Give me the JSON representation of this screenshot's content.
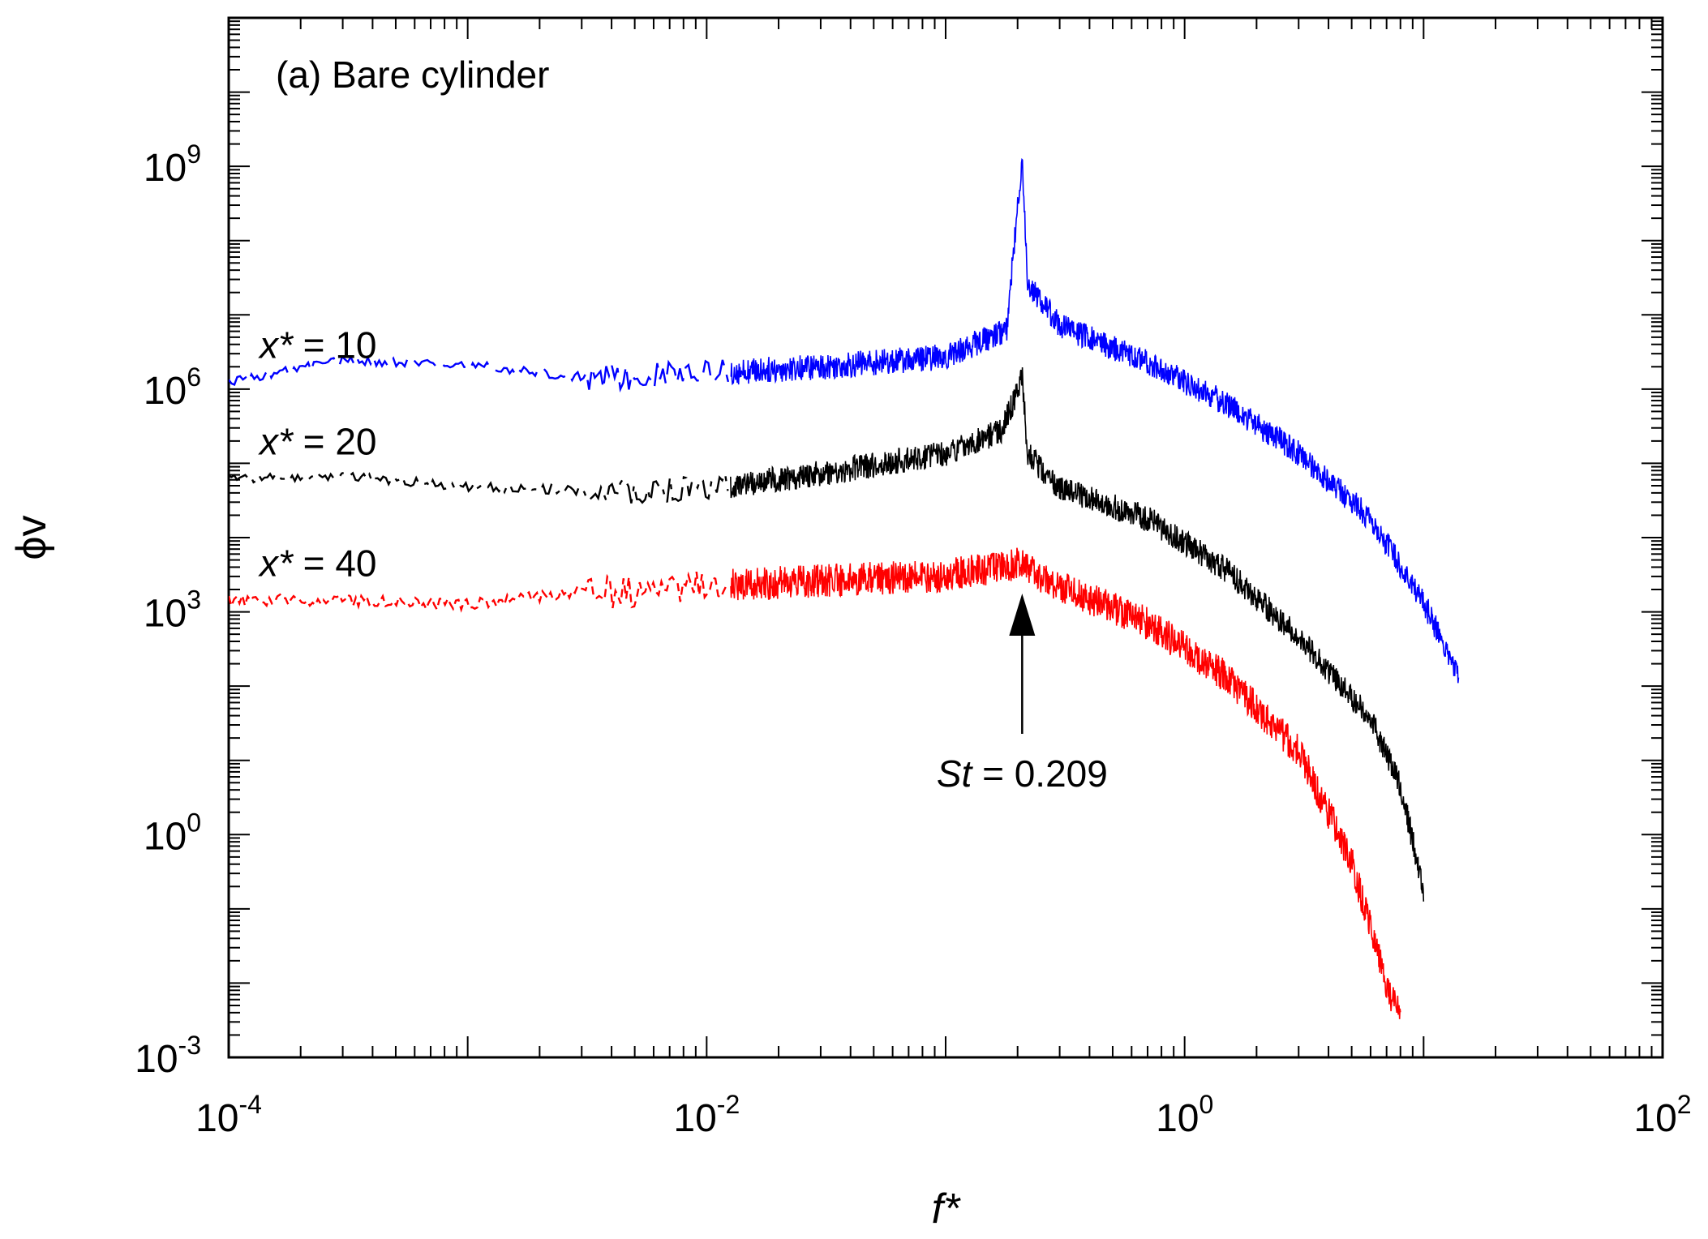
{
  "chart_data": {
    "type": "line",
    "title": "(a) Bare cylinder",
    "xlabel": "f*",
    "ylabel": "ϕv",
    "xscale": "log",
    "yscale": "log",
    "xlim": [
      0.0001,
      100
    ],
    "ylim": [
      0.001,
      100000000000
    ],
    "grid": false,
    "x_ticks": [
      {
        "base": "10",
        "exp": "-4",
        "value": 0.0001
      },
      {
        "base": "10",
        "exp": "-2",
        "value": 0.01
      },
      {
        "base": "10",
        "exp": "0",
        "value": 1
      },
      {
        "base": "10",
        "exp": "2",
        "value": 100
      }
    ],
    "y_ticks": [
      {
        "base": "10",
        "exp": "-3",
        "value": 0.001
      },
      {
        "base": "10",
        "exp": "0",
        "value": 1
      },
      {
        "base": "10",
        "exp": "3",
        "value": 1000
      },
      {
        "base": "10",
        "exp": "6",
        "value": 1000000
      },
      {
        "base": "10",
        "exp": "9",
        "value": 1000000000
      }
    ],
    "series": [
      {
        "label_var": "x*",
        "label_rest": " = 10",
        "color": "#0000ff",
        "dash": "long-dash",
        "noise_decades": 0.35,
        "points": [
          [
            0.0001,
            1300000.0
          ],
          [
            0.0003,
            2500000.0
          ],
          [
            0.001,
            2200000.0
          ],
          [
            0.003,
            1500000.0
          ],
          [
            0.01,
            1800000.0
          ],
          [
            0.03,
            2200000.0
          ],
          [
            0.1,
            3000000.0
          ],
          [
            0.18,
            7000000.0
          ],
          [
            0.2,
            300000000.0
          ],
          [
            0.209,
            1500000000.0
          ],
          [
            0.22,
            30000000.0
          ],
          [
            0.3,
            8000000.0
          ],
          [
            0.7,
            2500000.0
          ],
          [
            1.5,
            700000.0
          ],
          [
            3,
            150000.0
          ],
          [
            6,
            20000.0
          ],
          [
            10,
            1500.0
          ],
          [
            14,
            150.0
          ]
        ]
      },
      {
        "label_var": "x*",
        "label_rest": " = 20",
        "color": "#000000",
        "dash": "dash-dot",
        "noise_decades": 0.35,
        "points": [
          [
            0.0001,
            65000.0
          ],
          [
            0.0003,
            70000.0
          ],
          [
            0.001,
            50000.0
          ],
          [
            0.003,
            45000.0
          ],
          [
            0.01,
            50000.0
          ],
          [
            0.03,
            80000.0
          ],
          [
            0.1,
            150000.0
          ],
          [
            0.17,
            300000.0
          ],
          [
            0.2,
            1000000.0
          ],
          [
            0.209,
            1800000.0
          ],
          [
            0.22,
            150000.0
          ],
          [
            0.3,
            50000.0
          ],
          [
            0.7,
            20000.0
          ],
          [
            1.5,
            4000.0
          ],
          [
            3,
            500.0
          ],
          [
            6,
            40
          ],
          [
            8,
            5
          ],
          [
            10,
            0.2
          ]
        ]
      },
      {
        "label_var": "x*",
        "label_rest": " = 40",
        "color": "#ff0000",
        "dash": "short-dash",
        "noise_decades": 0.45,
        "points": [
          [
            0.0001,
            1500.0
          ],
          [
            0.0003,
            1500.0
          ],
          [
            0.001,
            1300.0
          ],
          [
            0.003,
            2000.0
          ],
          [
            0.01,
            2500.0
          ],
          [
            0.03,
            3000.0
          ],
          [
            0.1,
            3500.0
          ],
          [
            0.2,
            5000.0
          ],
          [
            0.3,
            2500.0
          ],
          [
            0.7,
            800.0
          ],
          [
            1.5,
            150.0
          ],
          [
            3,
            15
          ],
          [
            5,
            0.5
          ],
          [
            7,
            0.01
          ],
          [
            8,
            0.004
          ]
        ]
      }
    ],
    "annotations": [
      {
        "text_var": "St",
        "text_rest": " = 0.209",
        "x": 0.209
      }
    ]
  }
}
